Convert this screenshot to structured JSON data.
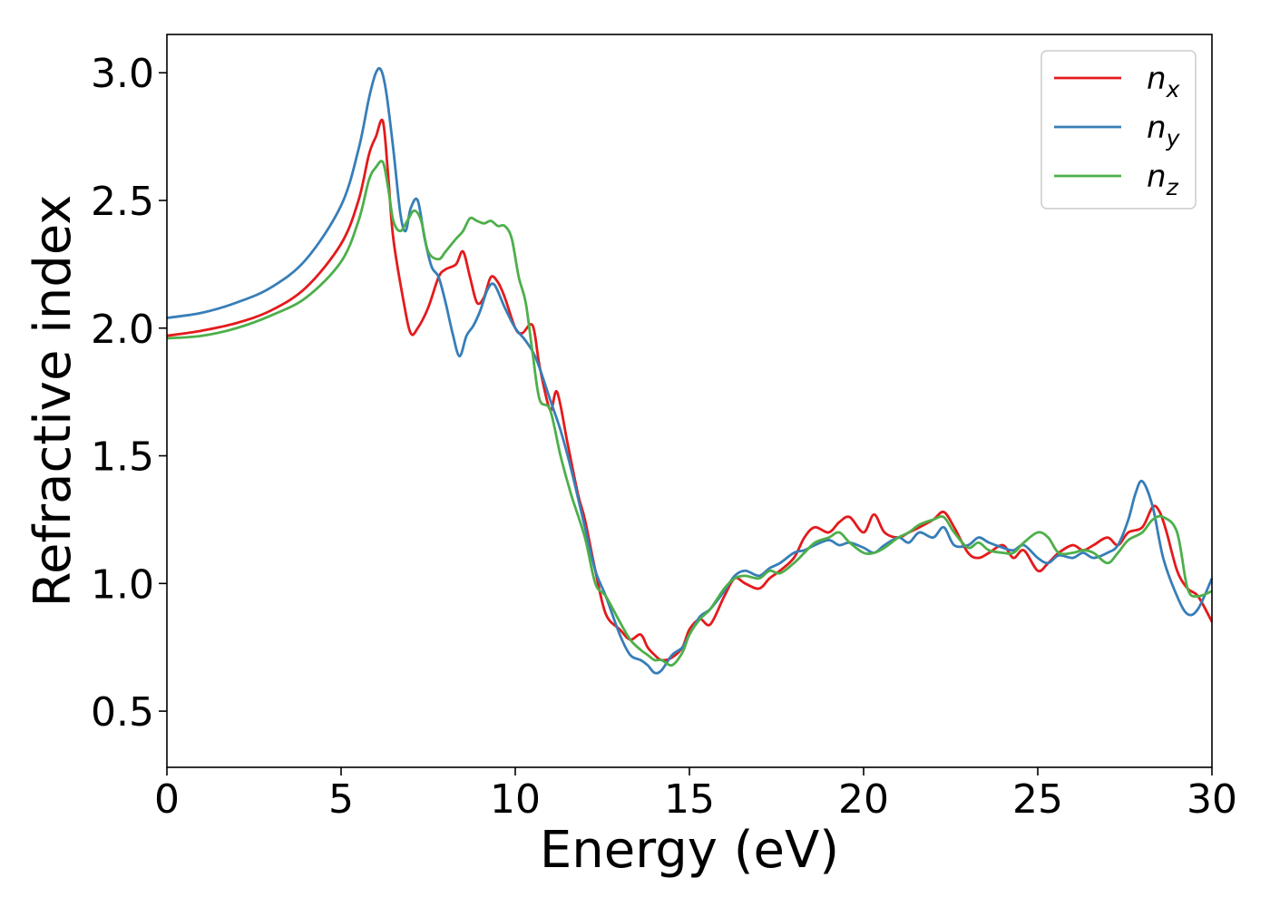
{
  "chart_data": {
    "type": "line",
    "title": "",
    "xlabel": "Energy (eV)",
    "ylabel": "Refractive index",
    "xlim": [
      0,
      30
    ],
    "ylim": [
      0.28,
      3.15
    ],
    "xticks": [
      0,
      5,
      10,
      15,
      20,
      25,
      30
    ],
    "xtick_labels": [
      "0",
      "5",
      "10",
      "15",
      "20",
      "25",
      "30"
    ],
    "yticks": [
      0.5,
      1.0,
      1.5,
      2.0,
      2.5,
      3.0
    ],
    "ytick_labels": [
      "0.5",
      "1.0",
      "1.5",
      "2.0",
      "2.5",
      "3.0"
    ],
    "grid": false,
    "legend_position": "top-right",
    "series": [
      {
        "name": "n",
        "subscript": "x",
        "color": "#e41a1c",
        "x": [
          0,
          1,
          2,
          3,
          4,
          5,
          5.5,
          5.8,
          6.0,
          6.2,
          6.35,
          6.5,
          6.8,
          7.0,
          7.2,
          7.5,
          7.8,
          8.0,
          8.3,
          8.5,
          8.7,
          8.9,
          9.1,
          9.3,
          9.5,
          9.7,
          10.0,
          10.2,
          10.5,
          10.7,
          11.0,
          11.2,
          11.5,
          11.8,
          12.0,
          12.3,
          12.6,
          13.0,
          13.3,
          13.6,
          13.8,
          14.0,
          14.2,
          14.5,
          14.8,
          15.0,
          15.3,
          15.6,
          16.0,
          16.3,
          16.6,
          17.0,
          17.3,
          17.6,
          18.0,
          18.3,
          18.6,
          19.0,
          19.3,
          19.6,
          20.0,
          20.3,
          20.6,
          21.0,
          21.3,
          21.6,
          22.0,
          22.3,
          22.6,
          23.0,
          23.3,
          23.6,
          24.0,
          24.3,
          24.6,
          25.0,
          25.3,
          25.6,
          26.0,
          26.3,
          26.6,
          27.0,
          27.3,
          27.6,
          28.0,
          28.3,
          28.5,
          28.7,
          29.0,
          29.3,
          29.6,
          30.0
        ],
        "y": [
          1.97,
          1.99,
          2.02,
          2.07,
          2.16,
          2.33,
          2.5,
          2.68,
          2.75,
          2.81,
          2.6,
          2.35,
          2.1,
          1.98,
          2.0,
          2.08,
          2.2,
          2.23,
          2.25,
          2.3,
          2.2,
          2.1,
          2.12,
          2.2,
          2.18,
          2.12,
          2.0,
          1.98,
          2.01,
          1.85,
          1.68,
          1.75,
          1.55,
          1.35,
          1.25,
          1.05,
          0.88,
          0.82,
          0.78,
          0.8,
          0.75,
          0.72,
          0.7,
          0.71,
          0.75,
          0.82,
          0.86,
          0.84,
          0.95,
          1.02,
          1.0,
          0.98,
          1.02,
          1.05,
          1.1,
          1.18,
          1.22,
          1.2,
          1.24,
          1.26,
          1.2,
          1.27,
          1.2,
          1.18,
          1.2,
          1.22,
          1.25,
          1.28,
          1.22,
          1.12,
          1.1,
          1.12,
          1.15,
          1.1,
          1.13,
          1.05,
          1.08,
          1.12,
          1.15,
          1.13,
          1.15,
          1.18,
          1.15,
          1.2,
          1.22,
          1.3,
          1.28,
          1.2,
          1.05,
          0.98,
          0.95,
          0.85
        ]
      },
      {
        "name": "n",
        "subscript": "y",
        "color": "#377eb8",
        "x": [
          0,
          1,
          2,
          3,
          4,
          5,
          5.5,
          5.8,
          6.0,
          6.15,
          6.3,
          6.5,
          6.7,
          6.85,
          7.0,
          7.2,
          7.4,
          7.6,
          7.8,
          8.0,
          8.2,
          8.4,
          8.6,
          8.8,
          9.0,
          9.2,
          9.4,
          9.7,
          10.0,
          10.3,
          10.6,
          11.0,
          11.3,
          11.6,
          12.0,
          12.3,
          12.6,
          13.0,
          13.3,
          13.6,
          13.8,
          14.0,
          14.2,
          14.5,
          14.8,
          15.0,
          15.3,
          15.6,
          16.0,
          16.3,
          16.6,
          17.0,
          17.3,
          17.6,
          18.0,
          18.3,
          18.6,
          19.0,
          19.3,
          19.6,
          20.0,
          20.3,
          20.6,
          21.0,
          21.3,
          21.6,
          22.0,
          22.3,
          22.6,
          23.0,
          23.3,
          23.6,
          24.0,
          24.3,
          24.6,
          25.0,
          25.3,
          25.6,
          26.0,
          26.3,
          26.6,
          27.0,
          27.3,
          27.6,
          27.8,
          28.0,
          28.3,
          28.6,
          29.0,
          29.3,
          29.6,
          30.0
        ],
        "y": [
          2.04,
          2.06,
          2.1,
          2.16,
          2.27,
          2.48,
          2.7,
          2.9,
          3.0,
          3.01,
          2.92,
          2.7,
          2.45,
          2.38,
          2.47,
          2.5,
          2.35,
          2.24,
          2.2,
          2.1,
          1.98,
          1.89,
          1.97,
          2.01,
          2.07,
          2.15,
          2.17,
          2.08,
          2.0,
          1.95,
          1.88,
          1.72,
          1.6,
          1.45,
          1.22,
          1.05,
          0.95,
          0.8,
          0.72,
          0.7,
          0.68,
          0.65,
          0.66,
          0.72,
          0.75,
          0.8,
          0.87,
          0.9,
          0.97,
          1.03,
          1.05,
          1.03,
          1.06,
          1.08,
          1.12,
          1.13,
          1.15,
          1.17,
          1.15,
          1.16,
          1.14,
          1.12,
          1.15,
          1.18,
          1.16,
          1.2,
          1.18,
          1.22,
          1.15,
          1.15,
          1.18,
          1.16,
          1.14,
          1.13,
          1.15,
          1.1,
          1.08,
          1.11,
          1.1,
          1.12,
          1.1,
          1.12,
          1.15,
          1.25,
          1.35,
          1.4,
          1.3,
          1.1,
          0.95,
          0.88,
          0.9,
          1.02
        ]
      },
      {
        "name": "n",
        "subscript": "z",
        "color": "#4daf4a",
        "x": [
          0,
          1,
          2,
          3,
          4,
          5,
          5.5,
          5.8,
          6.0,
          6.2,
          6.35,
          6.5,
          6.7,
          6.9,
          7.1,
          7.3,
          7.5,
          7.8,
          8.0,
          8.3,
          8.5,
          8.7,
          8.9,
          9.1,
          9.3,
          9.5,
          9.7,
          9.9,
          10.1,
          10.3,
          10.5,
          10.7,
          11.0,
          11.3,
          11.6,
          12.0,
          12.3,
          12.6,
          13.0,
          13.3,
          13.6,
          13.8,
          14.0,
          14.2,
          14.5,
          14.8,
          15.0,
          15.3,
          15.6,
          16.0,
          16.3,
          16.6,
          17.0,
          17.3,
          17.6,
          18.0,
          18.3,
          18.6,
          19.0,
          19.3,
          19.6,
          20.0,
          20.3,
          20.6,
          21.0,
          21.3,
          21.6,
          22.0,
          22.3,
          22.6,
          23.0,
          23.3,
          23.6,
          24.0,
          24.3,
          24.6,
          25.0,
          25.3,
          25.6,
          26.0,
          26.3,
          26.6,
          27.0,
          27.3,
          27.6,
          28.0,
          28.3,
          28.6,
          29.0,
          29.3,
          29.6,
          30.0
        ],
        "y": [
          1.96,
          1.97,
          2.0,
          2.05,
          2.12,
          2.26,
          2.42,
          2.58,
          2.63,
          2.65,
          2.55,
          2.42,
          2.38,
          2.42,
          2.46,
          2.42,
          2.3,
          2.27,
          2.3,
          2.35,
          2.38,
          2.43,
          2.42,
          2.41,
          2.42,
          2.4,
          2.4,
          2.35,
          2.2,
          2.1,
          1.9,
          1.72,
          1.68,
          1.5,
          1.35,
          1.18,
          1.0,
          0.95,
          0.85,
          0.78,
          0.74,
          0.72,
          0.7,
          0.7,
          0.68,
          0.73,
          0.8,
          0.86,
          0.9,
          0.98,
          1.02,
          1.03,
          1.02,
          1.05,
          1.04,
          1.08,
          1.12,
          1.16,
          1.18,
          1.2,
          1.16,
          1.12,
          1.12,
          1.14,
          1.18,
          1.2,
          1.23,
          1.25,
          1.26,
          1.2,
          1.14,
          1.16,
          1.13,
          1.12,
          1.12,
          1.16,
          1.2,
          1.18,
          1.12,
          1.12,
          1.13,
          1.12,
          1.08,
          1.12,
          1.17,
          1.2,
          1.25,
          1.26,
          1.2,
          0.98,
          0.95,
          0.97
        ]
      }
    ]
  }
}
